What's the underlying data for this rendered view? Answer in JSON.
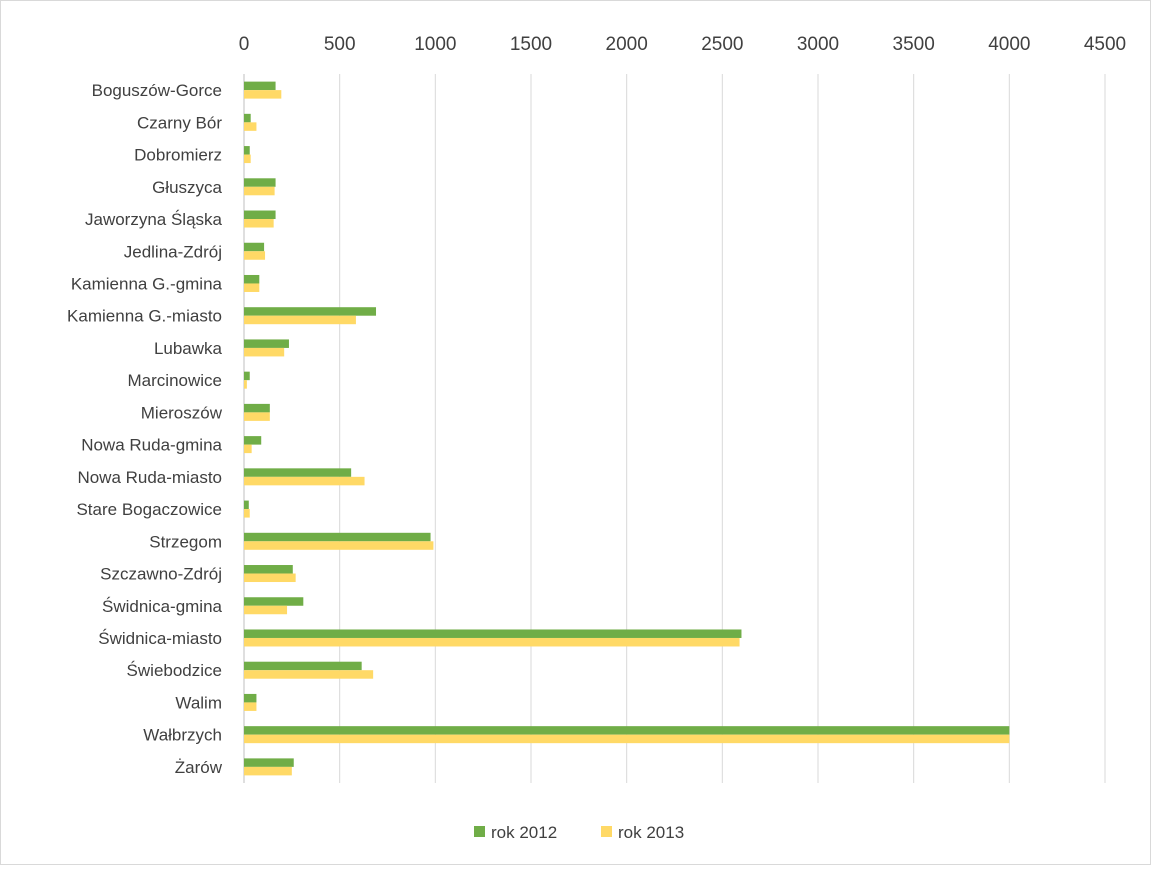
{
  "chart_data": {
    "type": "bar",
    "orientation": "horizontal",
    "categories": [
      "Boguszów-Gorce",
      "Czarny Bór",
      "Dobromierz",
      "Głuszyca",
      "Jaworzyna Śląska",
      "Jedlina-Zdrój",
      "Kamienna G.-gmina",
      "Kamienna G.-miasto",
      "Lubawka",
      "Marcinowice",
      "Mieroszów",
      "Nowa Ruda-gmina",
      "Nowa Ruda-miasto",
      "Stare Bogaczowice",
      "Strzegom",
      "Szczawno-Zdrój",
      "Świdnica-gmina",
      "Świdnica-miasto",
      "Świebodzice",
      "Walim",
      "Wałbrzych",
      "Żarów"
    ],
    "series": [
      {
        "name": "rok 2012",
        "color": "#70ad47",
        "values": [
          165,
          35,
          30,
          165,
          165,
          105,
          80,
          690,
          235,
          30,
          135,
          90,
          560,
          25,
          975,
          255,
          310,
          2600,
          615,
          65,
          4000,
          260
        ]
      },
      {
        "name": "rok 2013",
        "color": "#ffd966",
        "values": [
          195,
          65,
          35,
          160,
          155,
          110,
          80,
          585,
          210,
          15,
          135,
          40,
          630,
          30,
          990,
          270,
          225,
          2590,
          675,
          65,
          4000,
          250
        ]
      }
    ],
    "xlim": [
      0,
      4500
    ],
    "xticks": [
      "0",
      "500",
      "1000",
      "1500",
      "2000",
      "2500",
      "3000",
      "3500",
      "4000",
      "4500"
    ],
    "x_axis_position": "top",
    "gridlines": true,
    "legend_position": "bottom"
  }
}
